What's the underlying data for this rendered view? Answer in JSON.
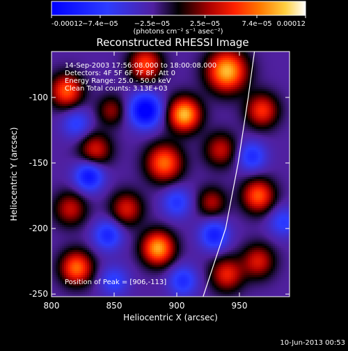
{
  "chart_data": {
    "type": "heatmap",
    "title": "Reconstructed RHESSI Image",
    "xlabel": "Heliocentric X (arcsec)",
    "ylabel": "Heliocentric Y (arcsec)",
    "xlim": [
      800,
      990
    ],
    "ylim": [
      -252,
      -65
    ],
    "x_ticks": [
      800,
      850,
      900,
      950
    ],
    "x_tick_labels": [
      "800",
      "850",
      "900",
      "950"
    ],
    "y_ticks": [
      -100,
      -150,
      -200,
      -250
    ],
    "y_tick_labels": [
      "-100",
      "-150",
      "-200",
      "-250"
    ],
    "colorbar": {
      "range": [
        -0.00012,
        0.00012
      ],
      "tick_values": [
        -0.00012,
        -7.4e-05,
        -2.5e-05,
        2.5e-05,
        7.4e-05,
        0.00012
      ],
      "tick_labels": [
        "-0.00012",
        "−7.4e−05",
        "−2.5e−05",
        "2.5e−05",
        "7.4e−05",
        "0.00012"
      ],
      "units": "(photons cm⁻² s⁻¹ asec⁻²)"
    },
    "annotations": [
      "14-Sep-2003 17:56:08.000 to 18:00:08.000",
      "Detectors: 4F 5F 6F 7F 8F, Att 0",
      "Energy Range: 25.0 - 50.0 keV",
      "Clean      Total counts: 3.13E+03"
    ],
    "peak_label": "Position of Peak = [906,-113]",
    "peak": {
      "x": 906,
      "y": -113
    },
    "limb_curve": [
      [
        962,
        -65
      ],
      [
        957,
        -100
      ],
      [
        949,
        -150
      ],
      [
        939,
        -200
      ],
      [
        921,
        -252
      ]
    ],
    "blobs": [
      {
        "x": 940,
        "y": -80,
        "a": 1.0,
        "s": 11
      },
      {
        "x": 906,
        "y": -113,
        "a": 1.0,
        "s": 9
      },
      {
        "x": 875,
        "y": -75,
        "a": 0.7,
        "s": 9
      },
      {
        "x": 812,
        "y": -95,
        "a": 0.75,
        "s": 9
      },
      {
        "x": 848,
        "y": -110,
        "a": 0.4,
        "s": 8
      },
      {
        "x": 968,
        "y": -110,
        "a": 0.65,
        "s": 9
      },
      {
        "x": 935,
        "y": -140,
        "a": 0.5,
        "s": 9
      },
      {
        "x": 890,
        "y": -150,
        "a": 0.8,
        "s": 10
      },
      {
        "x": 835,
        "y": -140,
        "a": 0.55,
        "s": 9
      },
      {
        "x": 965,
        "y": -175,
        "a": 0.75,
        "s": 9
      },
      {
        "x": 928,
        "y": -180,
        "a": 0.45,
        "s": 8
      },
      {
        "x": 860,
        "y": -185,
        "a": 0.55,
        "s": 9
      },
      {
        "x": 815,
        "y": -185,
        "a": 0.5,
        "s": 9
      },
      {
        "x": 885,
        "y": -215,
        "a": 0.95,
        "s": 9
      },
      {
        "x": 940,
        "y": -235,
        "a": 0.6,
        "s": 9
      },
      {
        "x": 820,
        "y": -230,
        "a": 0.8,
        "s": 9
      },
      {
        "x": 965,
        "y": -225,
        "a": 0.55,
        "s": 9
      },
      {
        "x": 875,
        "y": -110,
        "a": -0.9,
        "s": 9
      },
      {
        "x": 830,
        "y": -160,
        "a": -0.7,
        "s": 8
      },
      {
        "x": 930,
        "y": -205,
        "a": -0.6,
        "s": 8
      },
      {
        "x": 845,
        "y": -205,
        "a": -0.55,
        "s": 8
      },
      {
        "x": 960,
        "y": -145,
        "a": -0.5,
        "s": 8
      },
      {
        "x": 900,
        "y": -180,
        "a": -0.45,
        "s": 8
      },
      {
        "x": 905,
        "y": -240,
        "a": -0.5,
        "s": 8
      },
      {
        "x": 850,
        "y": -240,
        "a": -0.4,
        "s": 8
      },
      {
        "x": 820,
        "y": -120,
        "a": -0.4,
        "s": 8
      },
      {
        "x": 985,
        "y": -195,
        "a": -0.4,
        "s": 8
      }
    ],
    "background_level": -0.2
  },
  "timestamp": "10-Jun-2013 00:53"
}
